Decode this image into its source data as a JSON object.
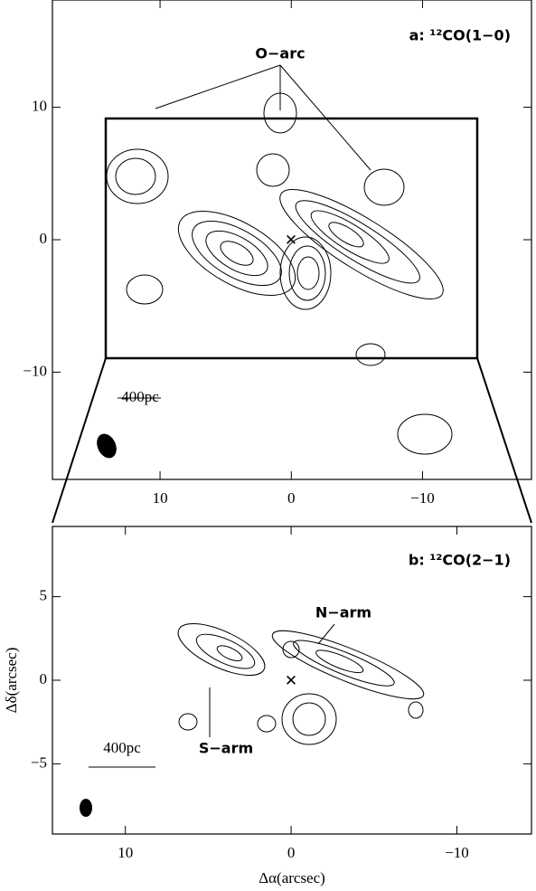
{
  "chart_data": [
    {
      "type": "contour",
      "title": "a: ¹²CO(1−0)",
      "xlim": [
        18.2,
        -18.3
      ],
      "ylim": [
        -18.1,
        18.1
      ],
      "xticks": [
        10,
        0,
        {
          "value": -10,
          "label": "−10"
        }
      ],
      "yticks": [
        10,
        0,
        {
          "value": -10,
          "label": "−10"
        }
      ],
      "annotations": [
        "O−arc",
        "400pc"
      ]
    },
    {
      "type": "contour",
      "title": "b: ¹²CO(2−1)",
      "xlabel": "Δα(arcsec)",
      "ylabel": "Δδ(arcsec)",
      "xlim": [
        14.4,
        -14.5
      ],
      "ylim": [
        -9.2,
        9.2
      ],
      "xticks": [
        10,
        0,
        {
          "value": -10,
          "label": "−10"
        }
      ],
      "yticks": [
        5,
        0,
        {
          "value": -5,
          "label": "−5"
        }
      ],
      "annotations": [
        "N−arm",
        "S−arm",
        "400pc"
      ]
    }
  ]
}
